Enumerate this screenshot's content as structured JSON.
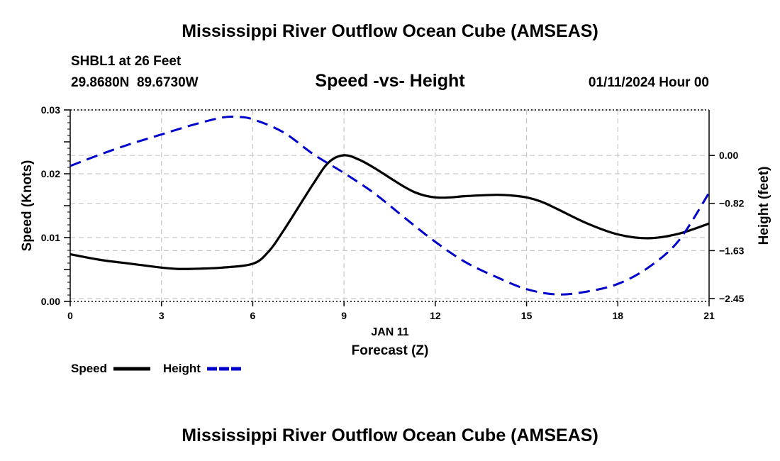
{
  "page": {
    "title_top": "Mississippi River Outflow Ocean Cube (AMSEAS)",
    "title_bottom": "Mississippi River Outflow Ocean Cube (AMSEAS)",
    "station_line": "SHBL1 at 26 Feet",
    "coords_line": "29.8680N  89.6730W",
    "date_line": "01/11/2024 Hour 00"
  },
  "chart_data": {
    "type": "line",
    "title": "Speed -vs- Height",
    "xlabel": "Forecast (Z)",
    "date_label": "JAN 11",
    "ylabel": "Speed (Knots)",
    "y2label": "Height (feet)",
    "xlim": [
      0,
      21
    ],
    "ylim": [
      0.0,
      0.03
    ],
    "y2lim": [
      -2.5,
      0.78
    ],
    "grid": true,
    "x_ticks": [
      0,
      3,
      6,
      9,
      12,
      15,
      18,
      21
    ],
    "x_tick_labels": [
      "0",
      "3",
      "6",
      "9",
      "12",
      "15",
      "18",
      "21"
    ],
    "y_ticks": [
      0.0,
      0.005,
      0.01,
      0.015,
      0.02,
      0.025,
      0.03
    ],
    "y_tick_labels": [
      "0.00",
      "",
      "0.01",
      "",
      "0.02",
      "",
      "0.03"
    ],
    "y2_ticks": [
      0.0,
      -0.82,
      -1.63,
      -2.45
    ],
    "y2_tick_labels": [
      "0.00",
      "−0.82",
      "−1.63",
      "−2.45"
    ],
    "series": [
      {
        "name": "Speed",
        "axis": "left",
        "color": "#000000",
        "style": "solid",
        "x": [
          0,
          1,
          2,
          3,
          3.5,
          4,
          5,
          6,
          6.5,
          7,
          8,
          8.5,
          9,
          9.5,
          10,
          11,
          11.5,
          12,
          12.5,
          13,
          14,
          14.5,
          15,
          15.5,
          16,
          17,
          18,
          19,
          20,
          21
        ],
        "values": [
          0.0074,
          0.0065,
          0.0059,
          0.0053,
          0.0051,
          0.0051,
          0.0053,
          0.0059,
          0.0077,
          0.011,
          0.0185,
          0.0218,
          0.0229,
          0.0222,
          0.0209,
          0.0179,
          0.0168,
          0.0163,
          0.0163,
          0.0165,
          0.0167,
          0.0166,
          0.0163,
          0.0156,
          0.0145,
          0.0122,
          0.0105,
          0.0099,
          0.0106,
          0.0122
        ]
      },
      {
        "name": "Height",
        "axis": "right",
        "color": "#0000cc",
        "style": "dashed",
        "x": [
          0,
          1,
          2,
          3,
          4,
          5,
          5.5,
          6,
          7,
          8,
          9,
          10,
          11,
          12,
          13,
          14,
          15,
          16,
          17,
          18,
          19,
          20,
          21
        ],
        "values": [
          -0.18,
          0.02,
          0.2,
          0.36,
          0.52,
          0.65,
          0.66,
          0.62,
          0.4,
          0.02,
          -0.3,
          -0.65,
          -1.07,
          -1.48,
          -1.83,
          -2.08,
          -2.29,
          -2.38,
          -2.33,
          -2.2,
          -1.92,
          -1.46,
          -0.64
        ]
      }
    ],
    "legend": {
      "placement": "bottom-left",
      "entries": [
        {
          "label": "Speed",
          "color": "#000000",
          "style": "solid"
        },
        {
          "label": "Height",
          "color": "#0000cc",
          "style": "dashed"
        }
      ]
    }
  }
}
